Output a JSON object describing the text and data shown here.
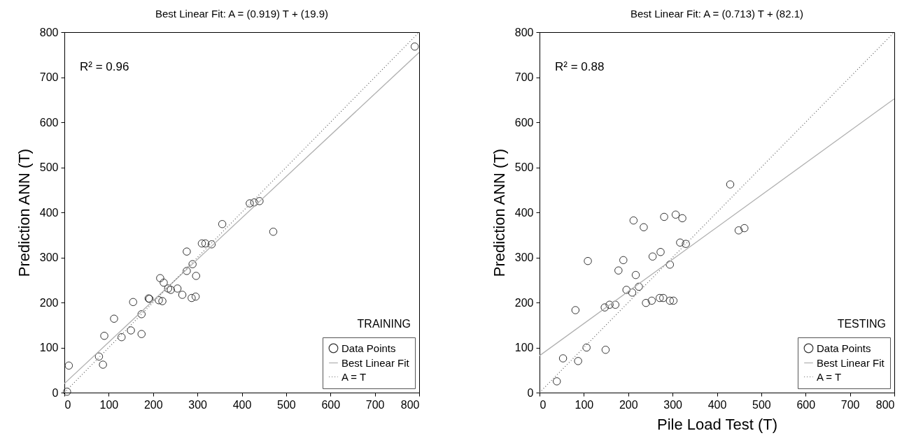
{
  "chart_data": [
    {
      "type": "scatter",
      "title": "Best Linear Fit:  A = (0.919) T + (19.9)",
      "ylabel": "Prediction ANN (T)",
      "xlim": [
        0,
        800
      ],
      "ylim": [
        0,
        800
      ],
      "xticks": [
        0,
        100,
        200,
        300,
        400,
        500,
        600,
        700,
        800
      ],
      "yticks": [
        0,
        100,
        200,
        300,
        400,
        500,
        600,
        700,
        800
      ],
      "grid": false,
      "legend": "bottom right",
      "annotations": [
        "R² = 0.96",
        "TRAINING"
      ],
      "series": [
        {
          "name": "Data Points",
          "type": "scatter",
          "marker": "circle",
          "color": "#333333",
          "x": [
            6,
            10,
            78,
            87,
            90,
            112,
            129,
            150,
            174,
            174,
            155,
            190,
            192,
            213,
            221,
            216,
            224,
            234,
            240,
            255,
            266,
            287,
            296,
            276,
            297,
            289,
            276,
            310,
            318,
            332,
            356,
            471,
            418,
            428,
            440,
            790
          ],
          "values": [
            2,
            60,
            80,
            62,
            126,
            164,
            123,
            138,
            130,
            174,
            201,
            209,
            208,
            205,
            203,
            254,
            244,
            231,
            228,
            231,
            217,
            210,
            213,
            270,
            259,
            285,
            313,
            331,
            331,
            329,
            374,
            357,
            420,
            422,
            425,
            768
          ]
        },
        {
          "name": "Best Linear Fit",
          "type": "line",
          "line_style": "solid",
          "color": "#b0b0b0",
          "x": [
            0,
            800
          ],
          "values": [
            20,
            755
          ]
        },
        {
          "name": "A = T",
          "type": "line",
          "line_style": "dotted",
          "color": "#666666",
          "x": [
            0,
            800
          ],
          "values": [
            0,
            800
          ]
        }
      ]
    },
    {
      "type": "scatter",
      "title": "Best Linear Fit:  A = (0.713) T + (82.1)",
      "xlabel": "Pile Load Test (T)",
      "ylabel": "Prediction ANN (T)",
      "xlim": [
        0,
        800
      ],
      "ylim": [
        0,
        800
      ],
      "xticks": [
        0,
        100,
        200,
        300,
        400,
        500,
        600,
        700,
        800
      ],
      "yticks": [
        0,
        100,
        200,
        300,
        400,
        500,
        600,
        700,
        800
      ],
      "grid": false,
      "legend": "bottom right",
      "annotations": [
        "R² = 0.88",
        "TESTING"
      ],
      "series": [
        {
          "name": "Data Points",
          "type": "scatter",
          "marker": "circle",
          "color": "#333333",
          "x": [
            39,
            53,
            87,
            81,
            106,
            109,
            149,
            147,
            158,
            171,
            178,
            189,
            196,
            209,
            212,
            217,
            224,
            235,
            240,
            253,
            255,
            271,
            279,
            273,
            281,
            294,
            294,
            302,
            307,
            322,
            317,
            330,
            449,
            462,
            430
          ],
          "values": [
            25,
            76,
            70,
            183,
            100,
            292,
            95,
            189,
            195,
            195,
            271,
            294,
            228,
            222,
            382,
            261,
            235,
            367,
            199,
            204,
            302,
            210,
            210,
            312,
            390,
            284,
            204,
            204,
            395,
            387,
            333,
            330,
            360,
            365,
            462
          ]
        },
        {
          "name": "Best Linear Fit",
          "type": "line",
          "line_style": "solid",
          "color": "#b0b0b0",
          "x": [
            0,
            800
          ],
          "values": [
            82,
            652
          ]
        },
        {
          "name": "A = T",
          "type": "line",
          "line_style": "dotted",
          "color": "#666666",
          "x": [
            0,
            800
          ],
          "values": [
            0,
            800
          ]
        }
      ]
    }
  ]
}
